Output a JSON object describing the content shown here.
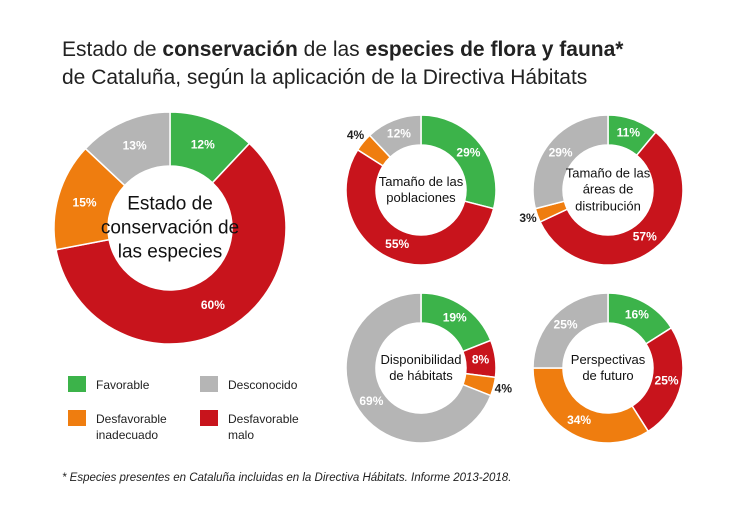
{
  "title": {
    "lines": [
      [
        {
          "text": "Estado de ",
          "bold": false
        },
        {
          "text": "conservación",
          "bold": true
        },
        {
          "text": " de las ",
          "bold": false
        },
        {
          "text": "especies de flora y fauna*",
          "bold": true
        }
      ],
      [
        {
          "text": "de Cataluña, según la aplicación de la Directiva Hábitats",
          "bold": false
        }
      ]
    ]
  },
  "legend": {
    "categories": [
      "Favorable",
      "Desfavorable malo",
      "Desfavorable inadecuado",
      "Desconocido"
    ],
    "colors": [
      "#3cb34a",
      "#c8141c",
      "#ef7d0f",
      "#b5b5b5"
    ]
  },
  "chart_data": [
    {
      "type": "pie",
      "center_label": "Estado de conservación de las especies",
      "values": [
        12,
        60,
        15,
        13
      ],
      "value_labels": [
        "12%",
        "60%",
        "15%",
        "13%"
      ]
    },
    {
      "type": "pie",
      "center_label": "Tamaño de las poblaciones",
      "values": [
        29,
        55,
        4,
        12
      ],
      "value_labels": [
        "29%",
        "55%",
        "4%",
        "12%"
      ]
    },
    {
      "type": "pie",
      "center_label": "Tamaño de las áreas de distribución",
      "values": [
        11,
        57,
        3,
        29
      ],
      "value_labels": [
        "11%",
        "57%",
        "3%",
        "29%"
      ]
    },
    {
      "type": "pie",
      "center_label": "Disponibilidad de hábitats",
      "values": [
        19,
        8,
        4,
        69
      ],
      "value_labels": [
        "19%",
        "8%",
        "4%",
        "69%"
      ]
    },
    {
      "type": "pie",
      "center_label": "Perspectivas de futuro",
      "values": [
        16,
        25,
        34,
        25
      ],
      "value_labels": [
        "16%",
        "25%",
        "34%",
        "25%"
      ]
    }
  ],
  "footnote": "* Especies presentes en Cataluña incluidas en la Directiva Hábitats. Informe 2013-2018."
}
